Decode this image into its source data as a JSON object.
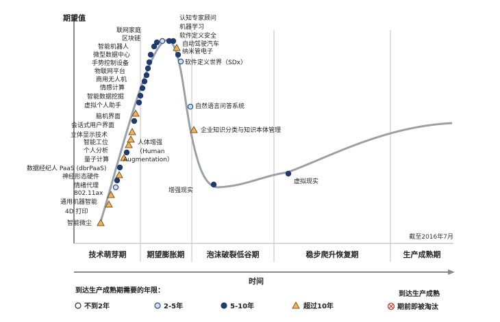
{
  "diagram": {
    "y_axis_title": "期望值",
    "x_axis_title": "时间",
    "as_of": "截至2016年7月",
    "phases": [
      "技术萌芽期",
      "期望膨胀期",
      "泡沫破裂低谷期",
      "稳步爬升恢复期",
      "生产成熟期"
    ],
    "technologies": [
      {
        "label": "认知专家顾问",
        "category": "5-10"
      },
      {
        "label": "机器学习",
        "category": "2-5"
      },
      {
        "label": "软件定义安全",
        "category": "5-10"
      },
      {
        "label": "自动驾驶汽车",
        "category": ">10"
      },
      {
        "label": "纳米管电子",
        "category": "5-10"
      },
      {
        "label": "软件定义世界（SDx）",
        "category": "2-5"
      },
      {
        "label": "联网家庭",
        "category": "5-10"
      },
      {
        "label": "区块链",
        "category": "5-10"
      },
      {
        "label": "智能机器人",
        "category": "5-10"
      },
      {
        "label": "微型数据中心",
        "category": "5-10"
      },
      {
        "label": "手势控制设备",
        "category": "5-10"
      },
      {
        "label": "物联网平台",
        "category": "5-10"
      },
      {
        "label": "商用无人机",
        "category": "5-10"
      },
      {
        "label": "情感计算",
        "category": "5-10"
      },
      {
        "label": "智能数据挖掘",
        "category": "5-10"
      },
      {
        "label": "虚拟个人助手",
        "category": "5-10"
      },
      {
        "label": "脑机界面",
        "category": ">10"
      },
      {
        "label": "会话式用户界面",
        "category": "5-10"
      },
      {
        "label": "立体显示技术",
        "category": ">10"
      },
      {
        "label": "智能工位",
        "category": ">10"
      },
      {
        "label": "个人分析",
        "category": "5-10"
      },
      {
        "label": "量子计算",
        "category": ">10"
      },
      {
        "label": "人体增强",
        "category": ">10",
        "sub": "（Human",
        "sub2": "Augmentation）"
      },
      {
        "label": "数据经纪人 PaaS (dbrPaaS)",
        "category": "5-10"
      },
      {
        "label": "神经形态硬件",
        "category": ">10"
      },
      {
        "label": "情绪代理",
        "category": "5-10"
      },
      {
        "label": "802.11ax",
        "category": "2-5"
      },
      {
        "label": "通用机器智能",
        "category": ">10"
      },
      {
        "label": "4D 打印",
        "category": ">10"
      },
      {
        "label": "智能微尘",
        "category": ">10"
      },
      {
        "label": "自然语言问答系统",
        "category": "2-5"
      },
      {
        "label": "企业知识分类与知识本体管理",
        "category": ">10"
      },
      {
        "label": "增强现实",
        "category": "5-10"
      },
      {
        "label": "虚拟现实",
        "category": "5-10"
      }
    ]
  },
  "legend": {
    "title": "到达生产成熟期需要的年限：",
    "items": [
      {
        "label": "不到2年",
        "symbol": "open-circle"
      },
      {
        "label": "2-5年",
        "symbol": "light-circle"
      },
      {
        "label": "5-10年",
        "symbol": "dark-circle"
      },
      {
        "label": "超过10年",
        "symbol": "triangle"
      }
    ],
    "obsolete_title": "到达生产成熟",
    "obsolete_label": "期前即被淘汰",
    "obsolete_symbol": "crossed-circle"
  },
  "colors": {
    "curve": "#9aa0a8",
    "dark_circle": "#1f3a6e",
    "light_circle_fill": "#cfe0ee",
    "light_circle_stroke": "#2a4d86",
    "triangle_fill": "#f2b45a",
    "triangle_stroke": "#7a5318",
    "divider": "#b0b0b0",
    "axis": "#8a8a8a",
    "obsolete": "#c0392b"
  }
}
